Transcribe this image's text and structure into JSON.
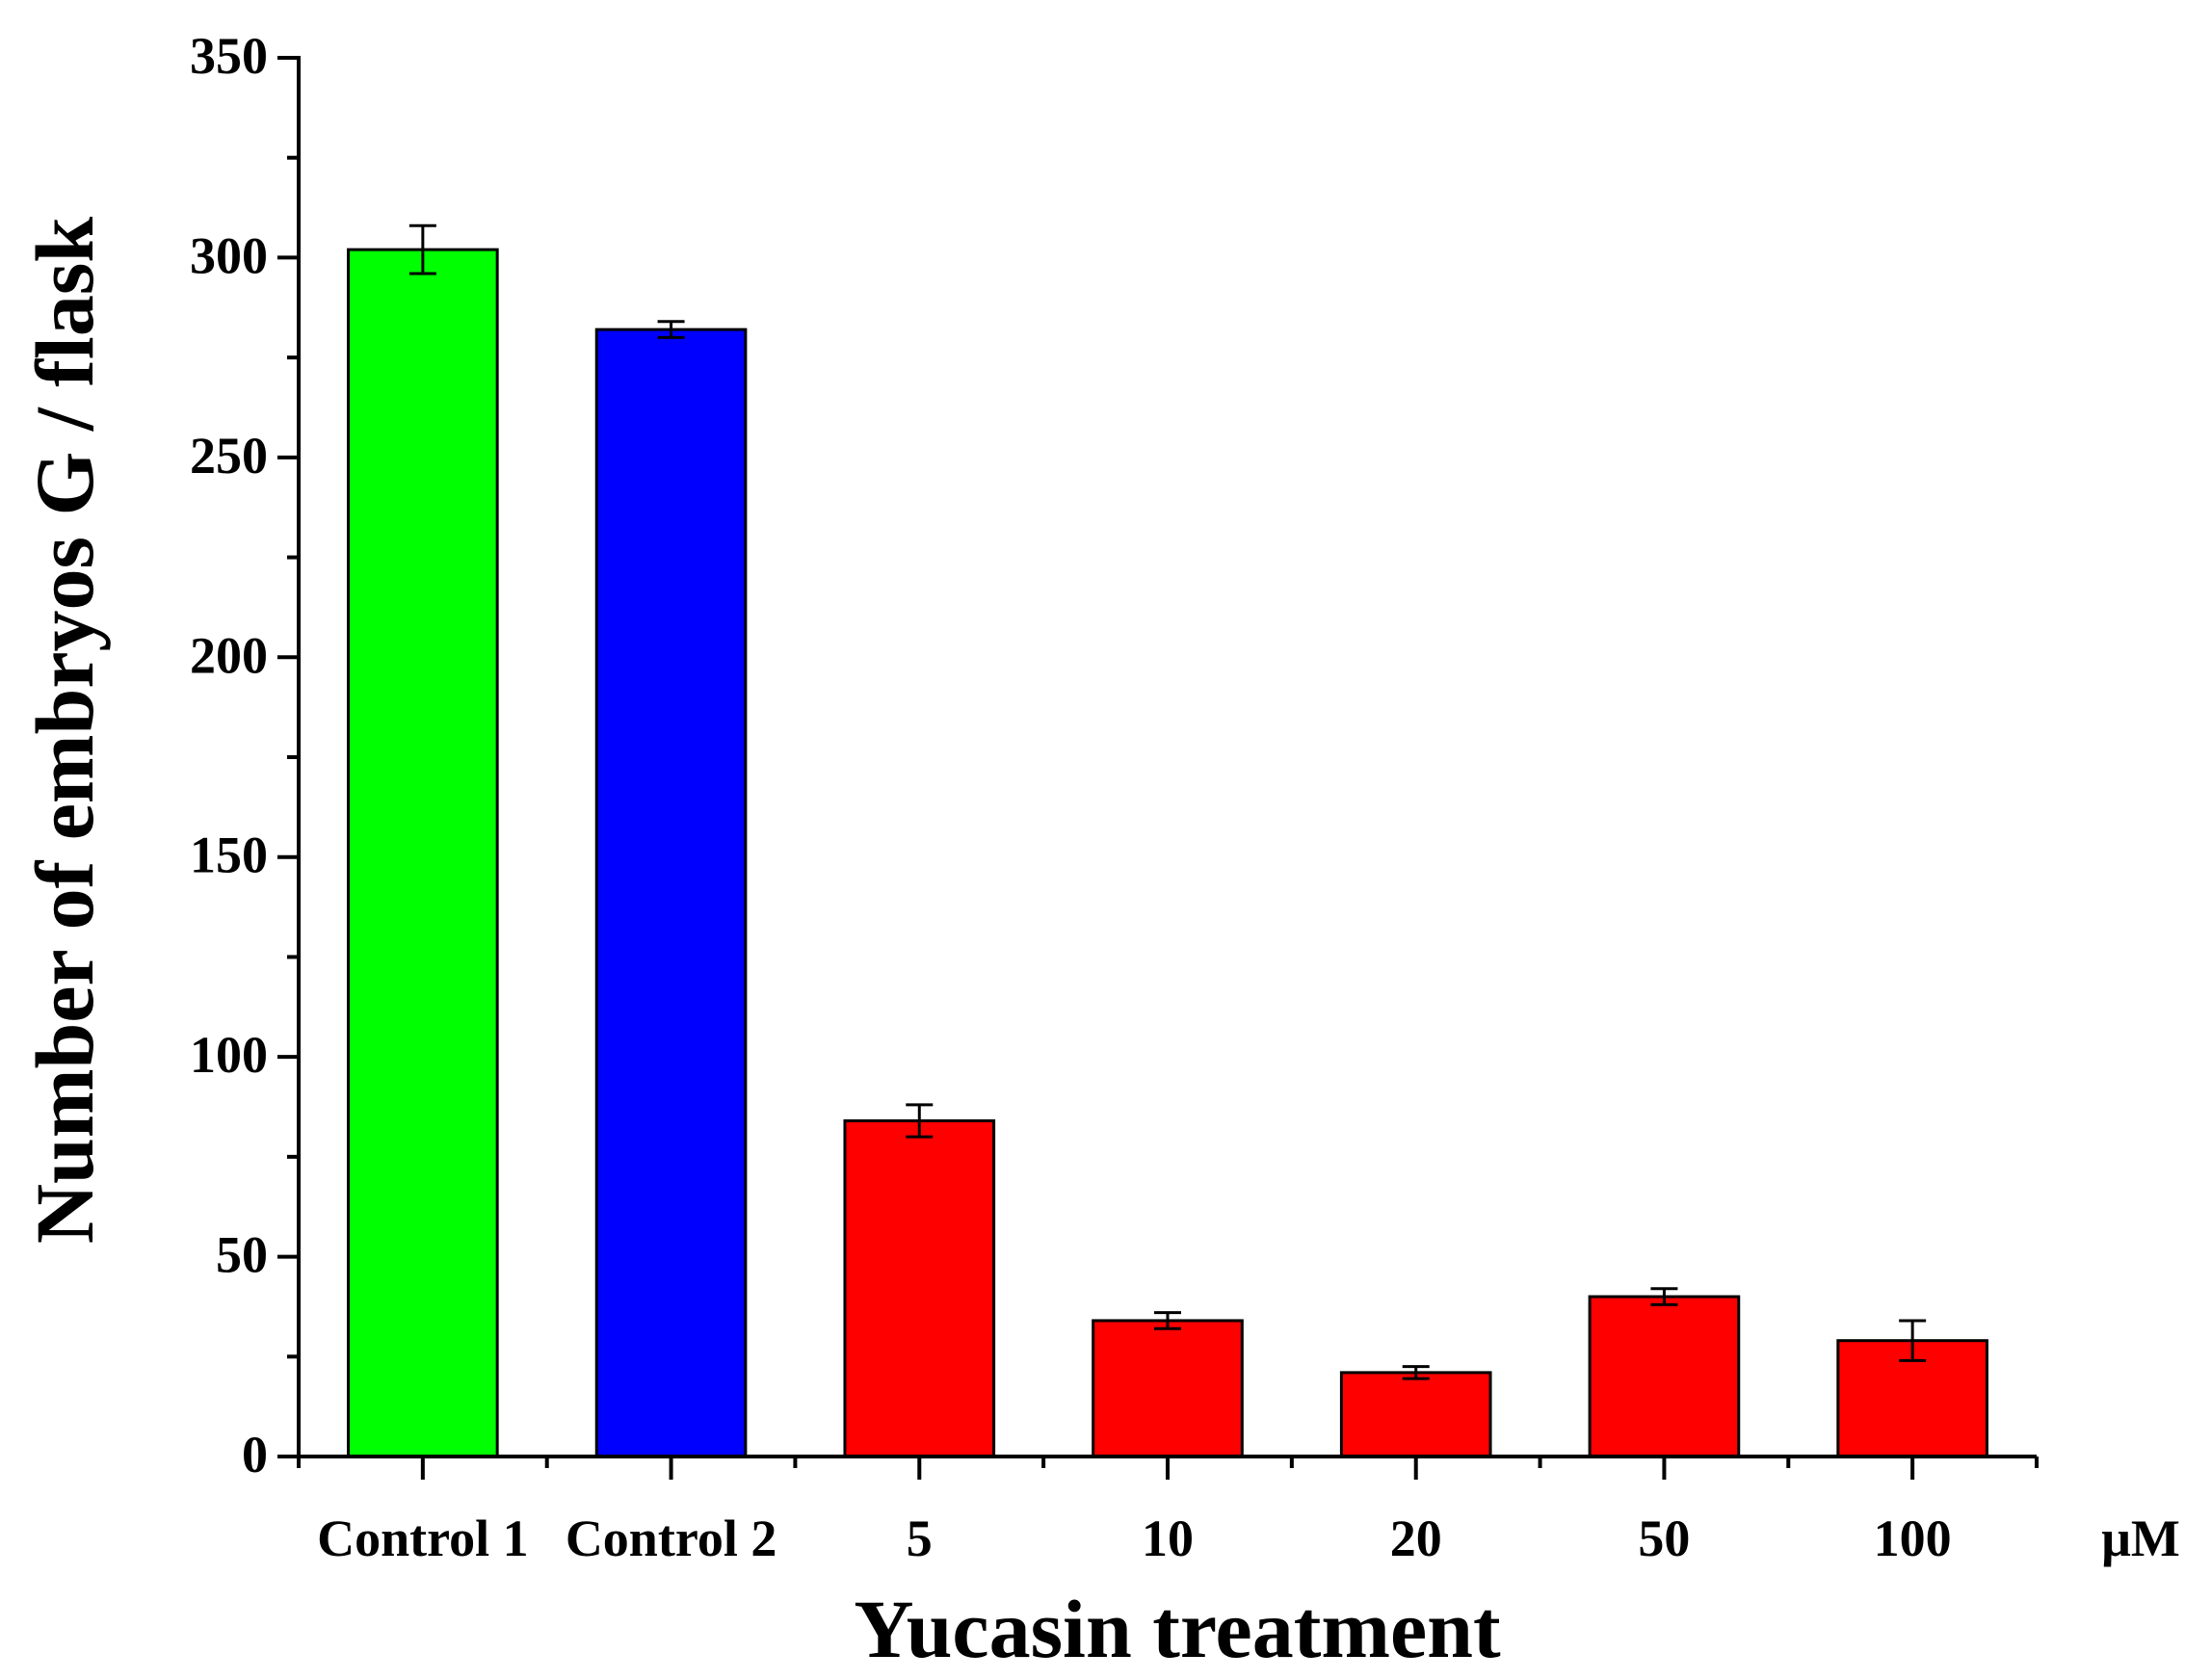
{
  "chart_data": {
    "type": "bar",
    "title": "",
    "xlabel": "Yucasin treatment",
    "ylabel": "Number of embryos G / flask",
    "x_unit": "μM",
    "categories": [
      "Control 1",
      "Control 2",
      "5",
      "10",
      "20",
      "50",
      "100"
    ],
    "values": [
      302,
      282,
      84,
      34,
      21,
      40,
      29
    ],
    "errors": [
      6,
      2,
      4,
      2,
      1.5,
      2,
      5
    ],
    "colors": [
      "#00ff00",
      "#0000ff",
      "#ff0000",
      "#ff0000",
      "#ff0000",
      "#ff0000",
      "#ff0000"
    ],
    "ylim": [
      0,
      350
    ],
    "yticks": [
      0,
      50,
      100,
      150,
      200,
      250,
      300,
      350
    ],
    "grid": false,
    "legend": "none"
  }
}
